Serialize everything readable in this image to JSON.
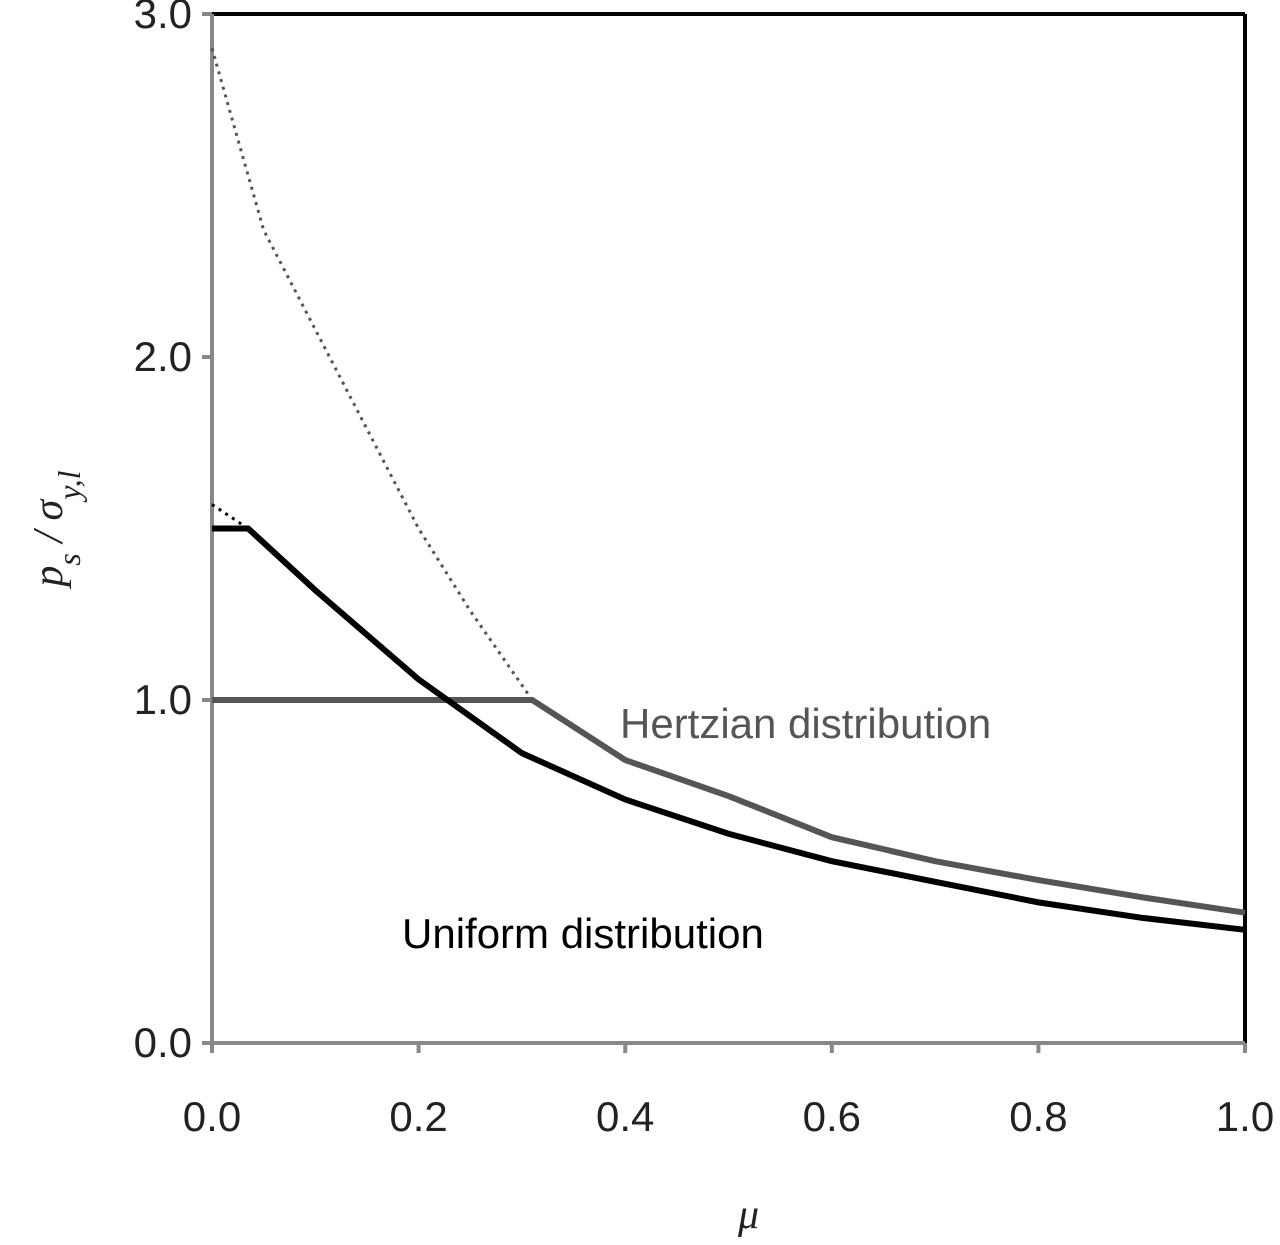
{
  "chart_data": {
    "type": "line",
    "x_label": "μ",
    "y_label": [
      {
        "text": "p"
      },
      {
        "text": "s",
        "sub": true
      },
      {
        "text": " / "
      },
      {
        "text": "σ"
      },
      {
        "text": "y,l",
        "sub": true
      }
    ],
    "xlim": [
      0,
      1
    ],
    "ylim": [
      0,
      3
    ],
    "xticks": [
      {
        "value": 0,
        "label": "0.0"
      },
      {
        "value": 0.2,
        "label": "0.2"
      },
      {
        "value": 0.4,
        "label": "0.4"
      },
      {
        "value": 0.6,
        "label": "0.6"
      },
      {
        "value": 0.8,
        "label": "0.8"
      },
      {
        "value": 1,
        "label": "1.0"
      }
    ],
    "yticks": [
      {
        "value": 0,
        "label": "0.0"
      },
      {
        "value": 1,
        "label": "1.0"
      },
      {
        "value": 2,
        "label": "2.0"
      },
      {
        "value": 3,
        "label": "3.0"
      }
    ],
    "series": [
      {
        "name": "Hertzian distribution",
        "color": "#555555",
        "style": "solid",
        "x": [
          0,
          0.31,
          0.4,
          0.5,
          0.6,
          0.7,
          0.8,
          0.9,
          1.0
        ],
        "values": [
          1.0,
          1.0,
          0.825,
          0.72,
          0.6,
          0.53,
          0.475,
          0.425,
          0.38
        ]
      },
      {
        "color": "#555555",
        "style": "dotted",
        "x": [
          0,
          0.05,
          0.1,
          0.15,
          0.2,
          0.25,
          0.31
        ],
        "values": [
          2.9,
          2.37,
          2.08,
          1.79,
          1.5,
          1.26,
          1.0
        ]
      },
      {
        "name": "Uniform distribution",
        "color": "#000000",
        "style": "solid",
        "x": [
          0,
          0.035,
          0.1,
          0.2,
          0.3,
          0.4,
          0.5,
          0.6,
          0.7,
          0.8,
          0.9,
          1.0
        ],
        "values": [
          1.5,
          1.5,
          1.32,
          1.06,
          0.845,
          0.71,
          0.61,
          0.53,
          0.47,
          0.41,
          0.365,
          0.33
        ]
      },
      {
        "color": "#000000",
        "style": "dotted",
        "x": [
          0,
          0.035
        ],
        "values": [
          1.57,
          1.5
        ]
      }
    ]
  }
}
